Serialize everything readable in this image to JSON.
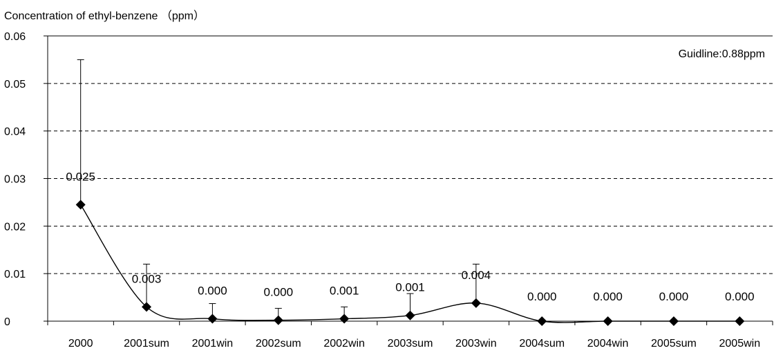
{
  "chart_data": {
    "type": "line",
    "title": "",
    "xlabel": "",
    "ylabel": "Concentration of ethyl-benzene （ppm）",
    "annotation": "Guidline:0.88ppm",
    "ylim": [
      0,
      0.06
    ],
    "yticks": [
      0,
      0.01,
      0.02,
      0.03,
      0.04,
      0.05,
      0.06
    ],
    "ytick_labels": [
      "0",
      "0.01",
      "0.02",
      "0.03",
      "0.04",
      "0.05",
      "0.06"
    ],
    "grid": "horizontal-dashed",
    "legend": "none",
    "categories": [
      "2000",
      "2001sum",
      "2001win",
      "2002sum",
      "2002win",
      "2003sum",
      "2003win",
      "2004sum",
      "2004win",
      "2005sum",
      "2005win"
    ],
    "series": [
      {
        "values": [
          0.0245,
          0.003,
          0.0005,
          0.0002,
          0.0005,
          0.0012,
          0.0038,
          0.0,
          0.0,
          0.0,
          0.0
        ],
        "error_upper": [
          0.055,
          0.012,
          0.0037,
          0.0027,
          0.003,
          0.0058,
          0.012,
          null,
          null,
          null,
          null
        ],
        "data_labels": [
          "0.025",
          "0.003",
          "0.000",
          "0.000",
          "0.001",
          "0.001",
          "0.004",
          "0.000",
          "0.000",
          "0.000",
          "0.000"
        ],
        "marker": "diamond",
        "color": "#000000",
        "smooth": true
      }
    ]
  }
}
